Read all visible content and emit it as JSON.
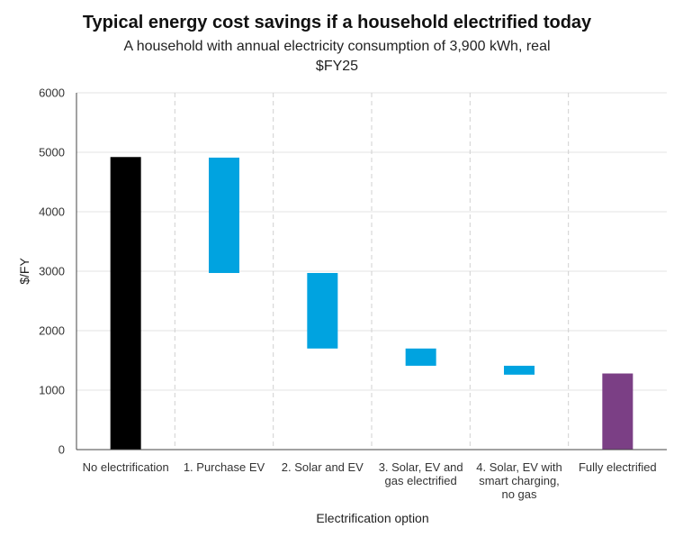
{
  "chart_data": {
    "type": "bar",
    "subtype": "waterfall",
    "title": "Typical energy cost savings if a household electrified today",
    "subtitle_lines": [
      "A household with annual electricity consumption of 3,900 kWh, real",
      "$FY25"
    ],
    "xlabel": "Electrification option",
    "ylabel": "$/FY",
    "ylim": [
      0,
      6000
    ],
    "yticks": [
      0,
      1000,
      2000,
      3000,
      4000,
      5000,
      6000
    ],
    "grid": true,
    "categories": [
      [
        "No electrification"
      ],
      [
        "1. Purchase EV"
      ],
      [
        "2. Solar and EV"
      ],
      [
        "3. Solar, EV and",
        "gas electrified"
      ],
      [
        "4. Solar, EV with",
        "smart charging,",
        "no gas"
      ],
      [
        "Fully electrified"
      ]
    ],
    "bars": [
      {
        "kind": "total",
        "start": 0,
        "end": 4920,
        "color": "#000000"
      },
      {
        "kind": "change",
        "start": 2970,
        "end": 4910,
        "color": "#00a3e0"
      },
      {
        "kind": "change",
        "start": 1700,
        "end": 2970,
        "color": "#00a3e0"
      },
      {
        "kind": "change",
        "start": 1410,
        "end": 1700,
        "color": "#00a3e0"
      },
      {
        "kind": "change",
        "start": 1260,
        "end": 1410,
        "color": "#00a3e0"
      },
      {
        "kind": "total",
        "start": 0,
        "end": 1280,
        "color": "#7b3f85"
      }
    ]
  }
}
